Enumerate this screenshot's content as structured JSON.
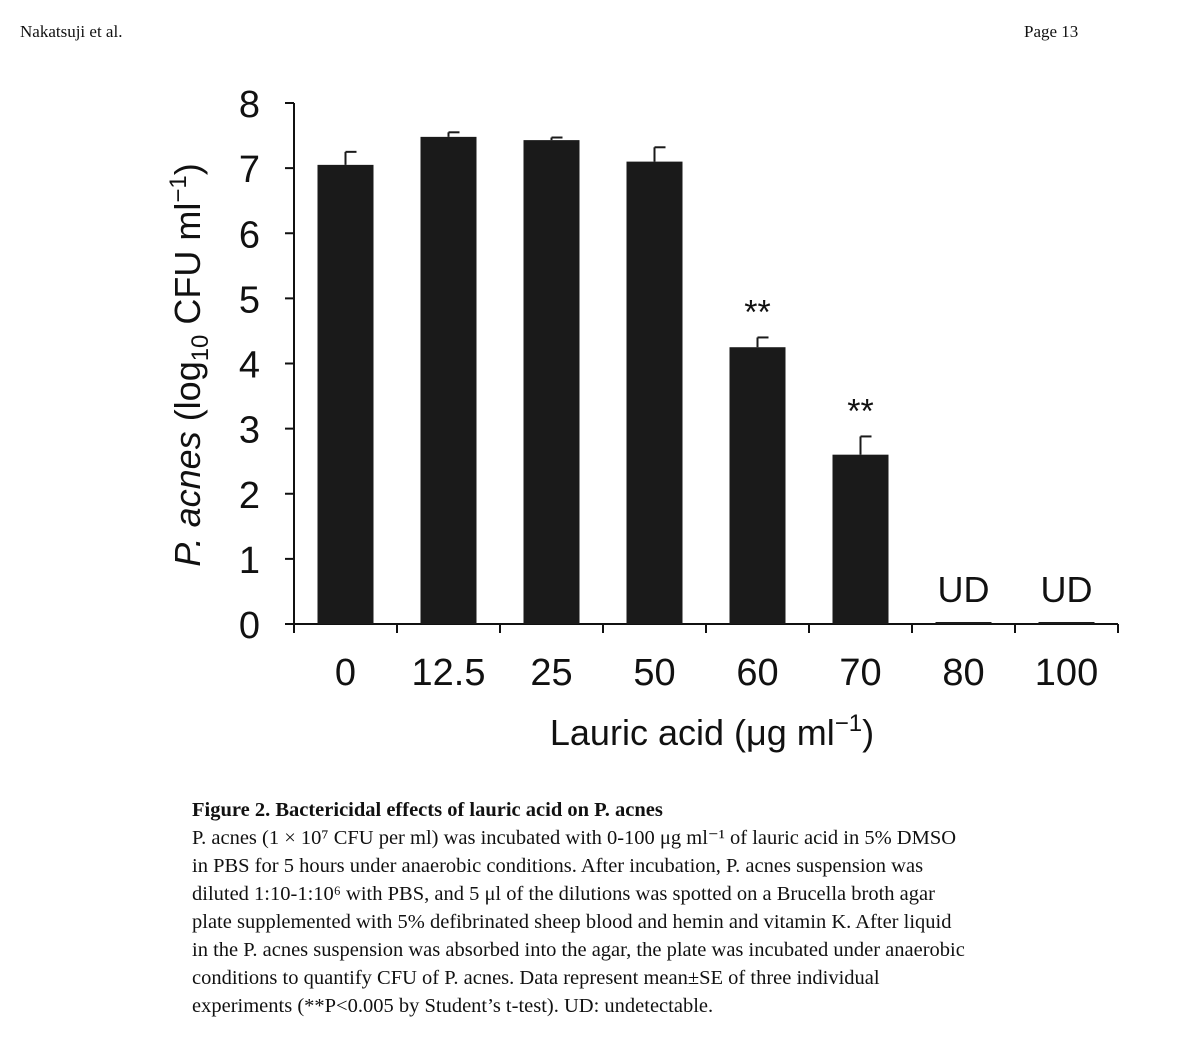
{
  "header": {
    "author": "Nakatsuji et al.",
    "page": "Page 13"
  },
  "chart_data": {
    "type": "bar",
    "categories": [
      "0",
      "12.5",
      "25",
      "50",
      "60",
      "70",
      "80",
      "100"
    ],
    "values": [
      7.05,
      7.48,
      7.43,
      7.1,
      4.25,
      2.6,
      0,
      0
    ],
    "errors": [
      0.2,
      0.07,
      0.04,
      0.22,
      0.15,
      0.28,
      0,
      0
    ],
    "annotations": [
      "",
      "",
      "",
      "",
      "**",
      "**",
      "UD",
      "UD"
    ],
    "ylim": [
      0,
      8
    ],
    "yticks": [
      "0",
      "1",
      "2",
      "3",
      "4",
      "5",
      "6",
      "7",
      "8"
    ],
    "ylabel": {
      "italic": "P. acnes",
      "pre": " (log",
      "sub": "10",
      "mid": " CFU ml",
      "sup": "−1",
      "post": ")"
    },
    "xlabel": {
      "pre": "Lauric acid (μg ml",
      "sup": "−1",
      "post": ")"
    },
    "bar_color": "#1a1a1a"
  },
  "caption": {
    "title": "Figure 2. Bactericidal effects of lauric acid on P. acnes",
    "lines": [
      "P. acnes (1 × 10⁷ CFU per ml) was incubated with 0-100 μg ml⁻¹ of lauric acid in 5% DMSO",
      "in PBS for 5 hours under anaerobic conditions. After incubation, P. acnes suspension was",
      "diluted 1:10-1:10⁶ with PBS, and 5 μl of the dilutions was spotted on a Brucella broth agar",
      "plate supplemented with 5% defibrinated sheep blood and hemin and vitamin K. After liquid",
      "in the P. acnes suspension was absorbed into the agar, the plate was incubated under anaerobic",
      "conditions to quantify CFU of P. acnes. Data represent mean±SE of three individual",
      "experiments (**P<0.005 by Student’s t-test). UD: undetectable."
    ]
  }
}
